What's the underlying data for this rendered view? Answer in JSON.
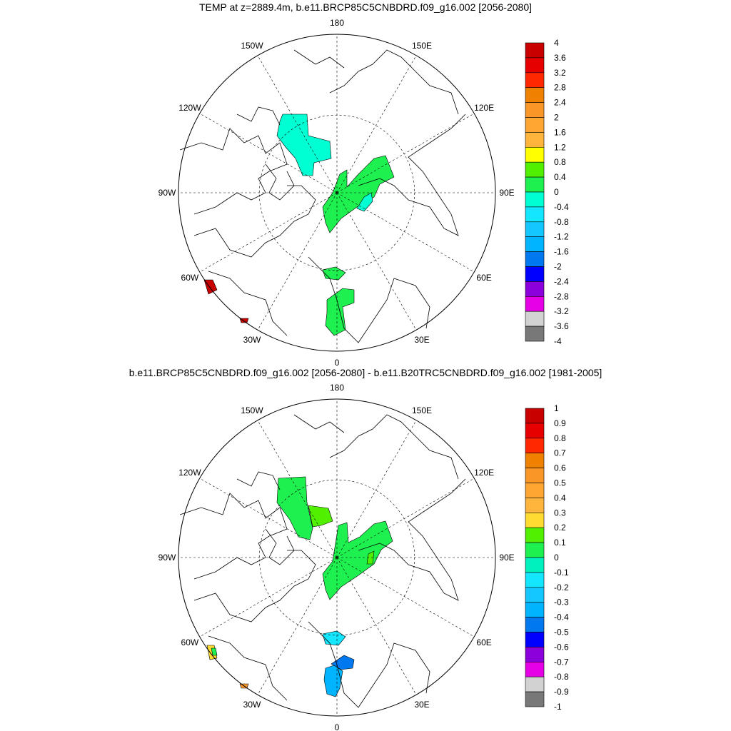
{
  "panels": [
    {
      "title": "TEMP at z=2889.4m, b.e11.BRCP85C5CNBDRD.f09_g16.002 [2056-2080]",
      "longitude_labels": [
        "180",
        "150E",
        "120E",
        "90E",
        "60E",
        "30E",
        "0",
        "30W",
        "60W",
        "90W",
        "120W",
        "150W"
      ],
      "colorbar": {
        "labels": [
          "4",
          "3.6",
          "3.2",
          "2.8",
          "2.4",
          "2",
          "1.6",
          "1.2",
          "0.8",
          "0.4",
          "0",
          "-0.4",
          "-0.8",
          "-1.2",
          "-1.6",
          "-2",
          "-2.4",
          "-2.8",
          "-3.2",
          "-3.6",
          "-4"
        ],
        "colors": [
          "#c80000",
          "#e60000",
          "#ff2800",
          "#f08000",
          "#fa9628",
          "#ffa532",
          "#ffb43c",
          "#ffff00",
          "#50f000",
          "#1ef050",
          "#00ffd2",
          "#14e6ff",
          "#14c8ff",
          "#00b4ff",
          "#0078f0",
          "#0000ff",
          "#8c00dc",
          "#e600e6",
          "#d2d2d2",
          "#787878"
        ]
      },
      "regions": [
        {
          "name": "cyan-patch-north",
          "color": "#00ffd2",
          "points": [
            [
              396,
              160
            ],
            [
              430,
              160
            ],
            [
              432,
              190
            ],
            [
              462,
              198
            ],
            [
              464,
              222
            ],
            [
              440,
              228
            ],
            [
              438,
              246
            ],
            [
              424,
              246
            ],
            [
              414,
              222
            ],
            [
              400,
              206
            ],
            [
              388,
              190
            ],
            [
              392,
              170
            ]
          ]
        },
        {
          "name": "green-patch-center",
          "color": "#1ef050",
          "points": [
            [
              476,
              244
            ],
            [
              486,
              238
            ],
            [
              486,
              262
            ],
            [
              502,
              244
            ],
            [
              524,
              222
            ],
            [
              540,
              218
            ],
            [
              552,
              248
            ],
            [
              532,
              258
            ],
            [
              524,
              276
            ],
            [
              500,
              290
            ],
            [
              478,
              306
            ],
            [
              462,
              326
            ],
            [
              456,
              312
            ],
            [
              452,
              290
            ],
            [
              466,
              270
            ]
          ]
        },
        {
          "name": "cyan-patch-center",
          "color": "#00ffd2",
          "points": [
            [
              500,
              292
            ],
            [
              510,
              276
            ],
            [
              520,
              270
            ],
            [
              522,
              282
            ],
            [
              510,
              296
            ]
          ]
        },
        {
          "name": "green-patch-small",
          "color": "#1ef050",
          "points": [
            [
              452,
              378
            ],
            [
              470,
              374
            ],
            [
              484,
              382
            ],
            [
              474,
              392
            ],
            [
              456,
              390
            ]
          ]
        },
        {
          "name": "green-patch-south",
          "color": "#1ef050",
          "points": [
            [
              458,
              420
            ],
            [
              480,
              404
            ],
            [
              496,
              406
            ],
            [
              496,
              424
            ],
            [
              480,
              430
            ],
            [
              484,
              462
            ],
            [
              468,
              470
            ],
            [
              456,
              456
            ],
            [
              458,
              438
            ]
          ]
        },
        {
          "name": "red-patch-west",
          "color": "#c80000",
          "points": [
            [
              286,
              392
            ],
            [
              298,
              392
            ],
            [
              304,
              406
            ],
            [
              292,
              412
            ]
          ]
        },
        {
          "name": "red-patch-southwest",
          "color": "#c80000",
          "points": [
            [
              336,
              446
            ],
            [
              348,
              446
            ],
            [
              346,
              452
            ],
            [
              338,
              452
            ]
          ]
        }
      ]
    },
    {
      "title": "b.e11.BRCP85C5CNBDRD.f09_g16.002 [2056-2080] - b.e11.B20TRC5CNBDRD.f09_g16.002 [1981-2005]",
      "longitude_labels": [
        "180",
        "150E",
        "120E",
        "90E",
        "60E",
        "30E",
        "0",
        "30W",
        "60W",
        "90W",
        "120W",
        "150W"
      ],
      "colorbar": {
        "labels": [
          "1",
          "0.9",
          "0.8",
          "0.7",
          "0.6",
          "0.5",
          "0.4",
          "0.3",
          "0.2",
          "0.1",
          "0",
          "-0.1",
          "-0.2",
          "-0.3",
          "-0.4",
          "-0.5",
          "-0.6",
          "-0.7",
          "-0.8",
          "-0.9",
          "-1"
        ],
        "colors": [
          "#c80000",
          "#e60000",
          "#ff2800",
          "#f08000",
          "#fa9628",
          "#ffa532",
          "#ffb43c",
          "#ffdc32",
          "#50f000",
          "#1ef050",
          "#00f0be",
          "#14e6ff",
          "#14c8ff",
          "#00b4ff",
          "#0078f0",
          "#0000ff",
          "#8c00dc",
          "#e600e6",
          "#d2d2d2",
          "#787878"
        ]
      },
      "regions": [
        {
          "name": "green-patch-north",
          "color": "#1ef050",
          "points": [
            [
              390,
              670
            ],
            [
              428,
              668
            ],
            [
              430,
              704
            ],
            [
              438,
              740
            ],
            [
              434,
              756
            ],
            [
              418,
              752
            ],
            [
              406,
              728
            ],
            [
              388,
              704
            ]
          ]
        },
        {
          "name": "lime-patch-north",
          "color": "#50f000",
          "points": [
            [
              432,
              708
            ],
            [
              460,
              712
            ],
            [
              466,
              730
            ],
            [
              450,
              736
            ],
            [
              438,
              738
            ]
          ]
        },
        {
          "name": "green-patch-center",
          "color": "#1ef050",
          "points": [
            [
              474,
              736
            ],
            [
              486,
              732
            ],
            [
              488,
              760
            ],
            [
              504,
              752
            ],
            [
              524,
              734
            ],
            [
              540,
              730
            ],
            [
              550,
              758
            ],
            [
              534,
              770
            ],
            [
              524,
              790
            ],
            [
              502,
              806
            ],
            [
              478,
              822
            ],
            [
              462,
              840
            ],
            [
              456,
              826
            ],
            [
              452,
              804
            ],
            [
              466,
              786
            ]
          ]
        },
        {
          "name": "lime-patch-center",
          "color": "#50f000",
          "points": [
            [
              516,
              776
            ],
            [
              524,
              772
            ],
            [
              522,
              790
            ],
            [
              514,
              790
            ]
          ]
        },
        {
          "name": "cyan-patch-small",
          "color": "#14e6ff",
          "points": [
            [
              452,
              888
            ],
            [
              472,
              884
            ],
            [
              484,
              892
            ],
            [
              474,
              904
            ],
            [
              456,
              902
            ]
          ]
        },
        {
          "name": "blue-patch-south",
          "color": "#0078f0",
          "points": [
            [
              464,
              930
            ],
            [
              482,
              918
            ],
            [
              496,
              924
            ],
            [
              494,
              936
            ],
            [
              478,
              938
            ]
          ]
        },
        {
          "name": "skyblue-patch-south",
          "color": "#00b4ff",
          "points": [
            [
              456,
              936
            ],
            [
              468,
              932
            ],
            [
              480,
              940
            ],
            [
              476,
              964
            ],
            [
              470,
              976
            ],
            [
              458,
              972
            ],
            [
              454,
              952
            ]
          ]
        },
        {
          "name": "yellow-patch-west",
          "color": "#ffdc32",
          "points": [
            [
              290,
              904
            ],
            [
              300,
              904
            ],
            [
              304,
              922
            ],
            [
              294,
              924
            ]
          ]
        },
        {
          "name": "green-patch-west",
          "color": "#1ef050",
          "points": [
            [
              296,
              908
            ],
            [
              302,
              908
            ],
            [
              304,
              918
            ],
            [
              298,
              918
            ]
          ]
        },
        {
          "name": "orange-patch-southwest",
          "color": "#fa9628",
          "points": [
            [
              336,
              958
            ],
            [
              348,
              958
            ],
            [
              346,
              964
            ],
            [
              338,
              964
            ]
          ]
        }
      ]
    }
  ]
}
